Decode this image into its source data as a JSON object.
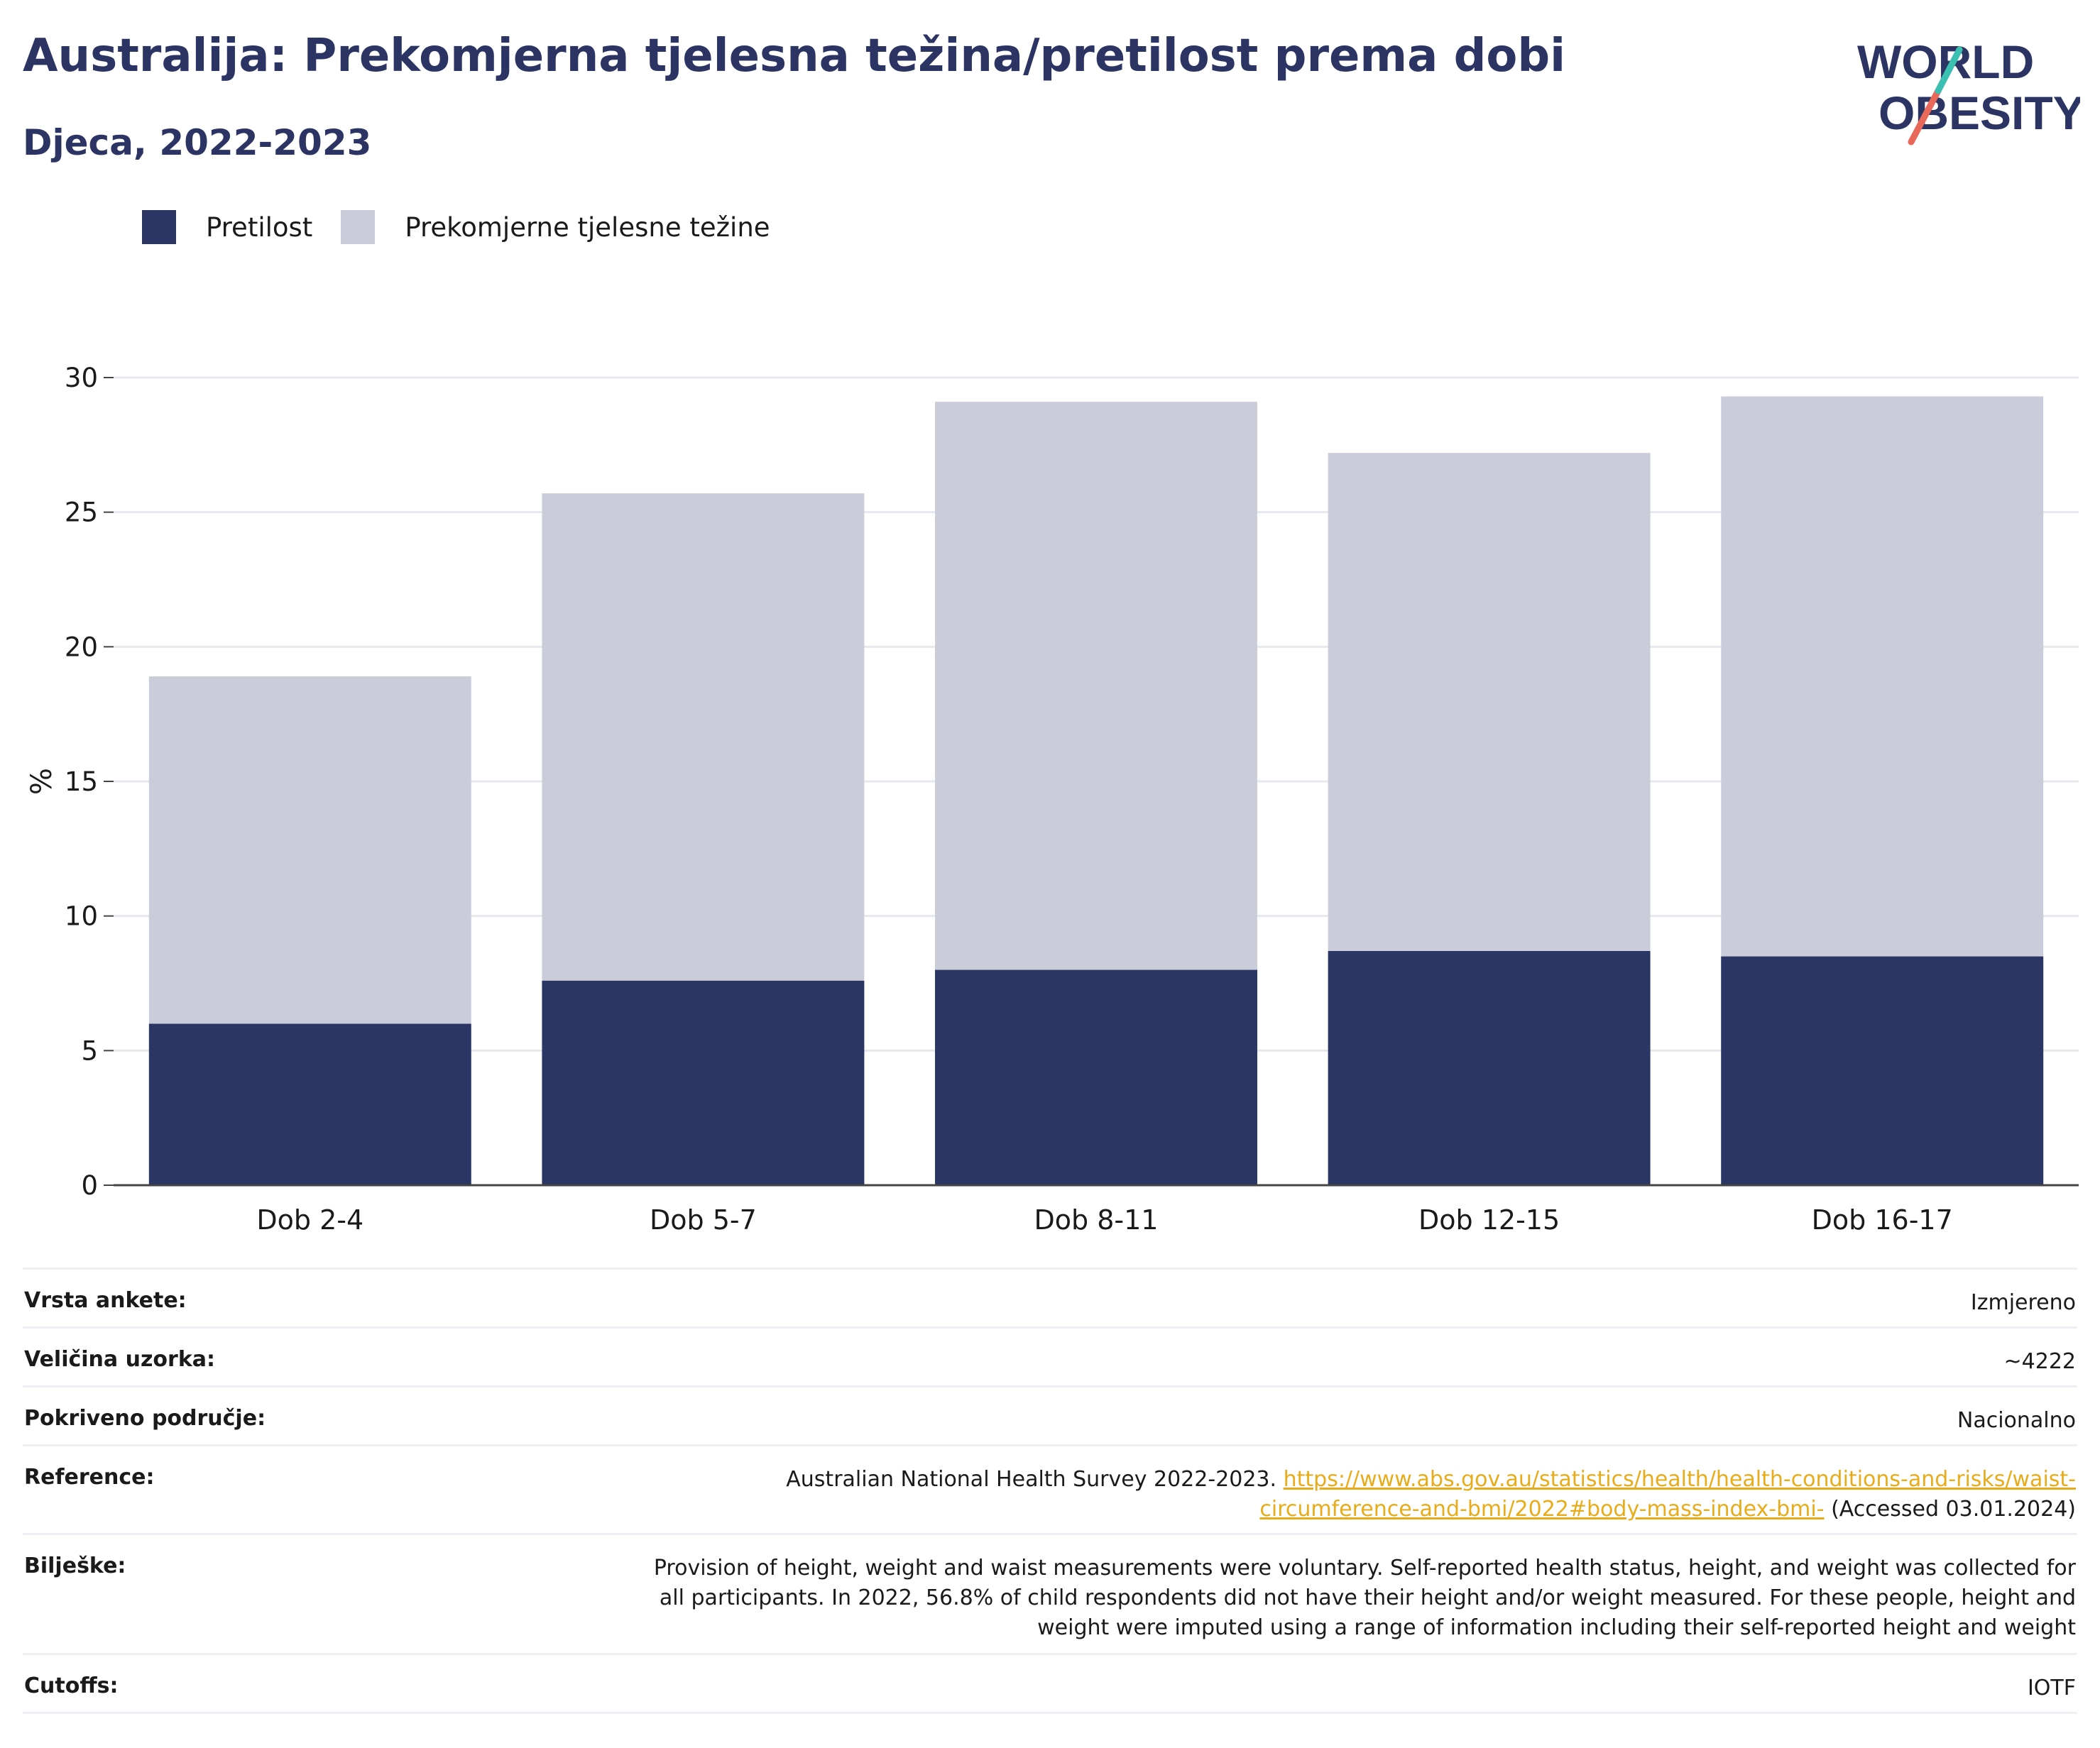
{
  "header": {
    "title": "Australija: Prekomjerna tjelesna težina/pretilost prema dobi",
    "subtitle": "Djeca, 2022-2023",
    "logo_line1": "WORLD",
    "logo_line2": "OBESITY"
  },
  "legend": {
    "obesity": "Pretilost",
    "overweight": "Prekomjerne tjelesne težine"
  },
  "colors": {
    "obesity": "#2b3664",
    "overweight": "#cacdd9",
    "title": "#2b3463",
    "link": "#e8ac1a"
  },
  "chart_data": {
    "type": "bar",
    "stacked": true,
    "categories": [
      "Dob 2-4",
      "Dob 5-7",
      "Dob 8-11",
      "Dob 12-15",
      "Dob 16-17"
    ],
    "series": [
      {
        "name": "Pretilost",
        "values": [
          6.0,
          7.6,
          8.0,
          8.7,
          8.5
        ]
      },
      {
        "name": "Prekomjerne tjelesne težine",
        "values": [
          12.9,
          18.1,
          21.1,
          18.5,
          20.8
        ]
      }
    ],
    "ylabel": "%",
    "ylim": [
      0,
      30
    ],
    "yticks": [
      0,
      5,
      10,
      15,
      20,
      25,
      30
    ],
    "grid": true,
    "legend_position": "top-left"
  },
  "info": {
    "survey_type": {
      "label": "Vrsta ankete:",
      "value": "Izmjereno"
    },
    "sample_size": {
      "label": "Veličina uzorka:",
      "value": "~4222"
    },
    "coverage": {
      "label": "Pokriveno područje:",
      "value": "Nacionalno"
    },
    "reference": {
      "label": "Reference:",
      "text": "Australian National Health Survey 2022-2023.",
      "link_part1": "https://www.abs.gov.au/statistics/health/health-conditions-and-risks/waist-",
      "link_part2": "circumference-and-bmi/2022#body-mass-index-bmi-",
      "accessed": "(Accessed 03.01.2024)"
    },
    "notes": {
      "label": "Bilješke:",
      "line1": "Provision of height, weight and waist measurements were voluntary. Self-reported health status, height, and weight was collected for",
      "line2": "all participants. In 2022, 56.8% of child respondents did not have their height and/or weight measured. For these people, height and",
      "line3": "weight were imputed using a range of information including their self-reported height and weight"
    },
    "cutoffs": {
      "label": "Cutoffs:",
      "value": "IOTF"
    }
  }
}
